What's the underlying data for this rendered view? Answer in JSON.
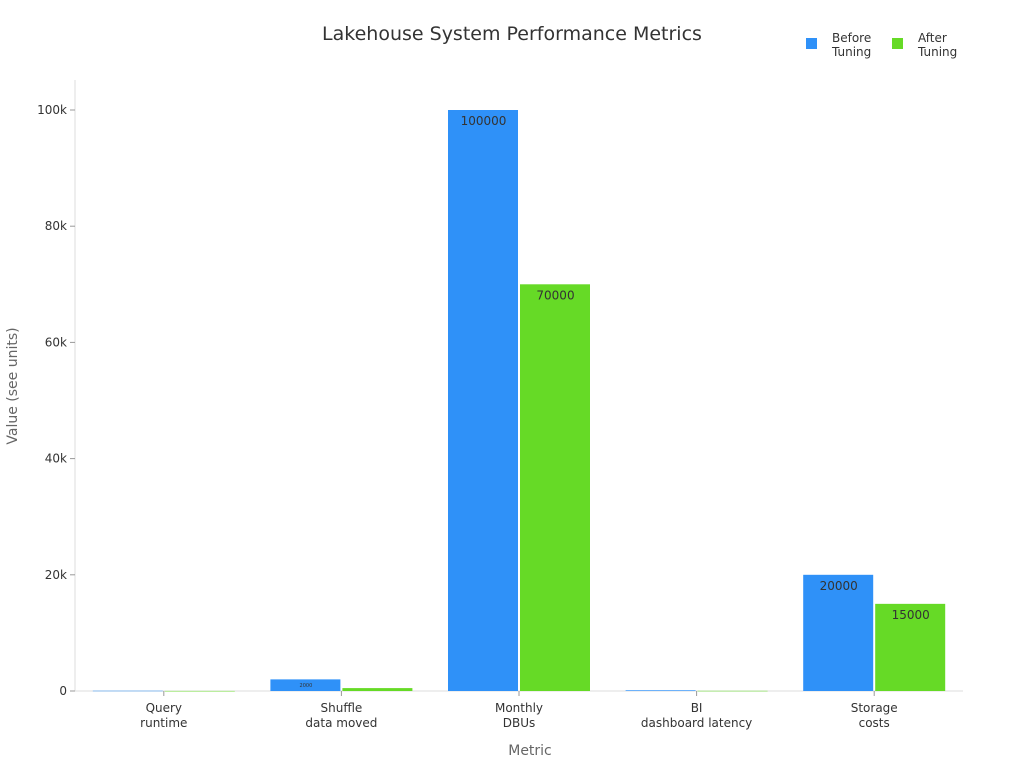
{
  "chart_data": {
    "type": "bar",
    "title": "Lakehouse System Performance Metrics",
    "xlabel": "Metric",
    "ylabel": "Value (see units)",
    "categories": [
      "Query\nruntime",
      "Shuffle\ndata moved",
      "Monthly\nDBUs",
      "BI\ndashboard latency",
      "Storage\ncosts"
    ],
    "series": [
      {
        "name": "Before\nTuning",
        "color": "#2f91f8",
        "values": [
          45,
          2000,
          100000,
          120,
          20000
        ]
      },
      {
        "name": "After\nTuning",
        "color": "#66da26",
        "values": [
          12,
          500,
          70000,
          30,
          15000
        ]
      }
    ],
    "ylim": [
      0,
      105000
    ],
    "yticks": [
      0,
      20000,
      40000,
      60000,
      80000,
      100000
    ],
    "ytick_labels": [
      "0",
      "20k",
      "40k",
      "60k",
      "80k",
      "100k"
    ],
    "grid": false,
    "legend": "top-right"
  }
}
